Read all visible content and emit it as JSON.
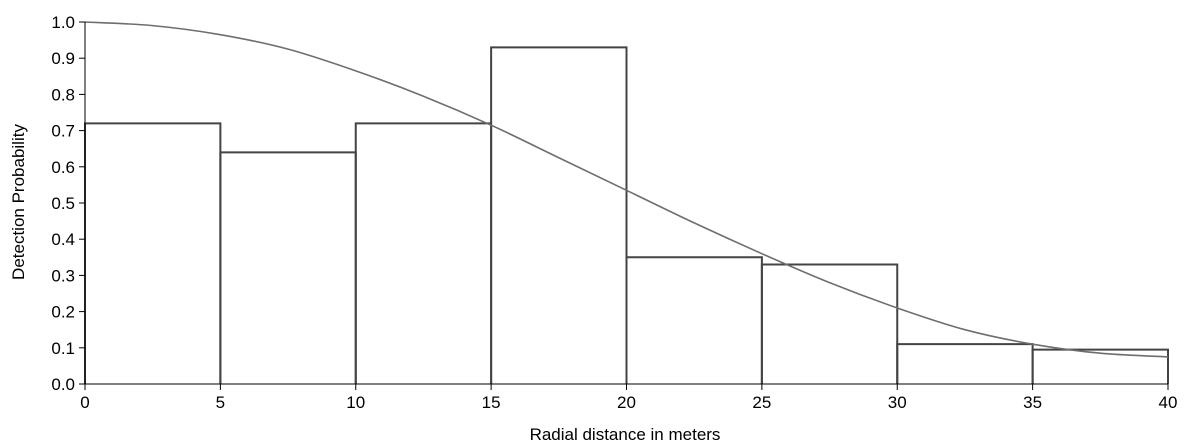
{
  "chart_data": {
    "type": "bar",
    "title": "",
    "xlabel": "Radial distance in meters",
    "ylabel": "Detection Probability",
    "xlim": [
      0,
      40
    ],
    "ylim": [
      0,
      1.0
    ],
    "xticks": [
      "0",
      "5",
      "10",
      "15",
      "20",
      "25",
      "30",
      "35",
      "40"
    ],
    "yticks": [
      "0.0",
      "0.1",
      "0.2",
      "0.3",
      "0.4",
      "0.5",
      "0.6",
      "0.7",
      "0.8",
      "0.9",
      "1.0"
    ],
    "grid": false,
    "bins": [
      {
        "from": 0,
        "to": 5,
        "value": 0.72
      },
      {
        "from": 5,
        "to": 10,
        "value": 0.64
      },
      {
        "from": 10,
        "to": 15,
        "value": 0.72
      },
      {
        "from": 15,
        "to": 20,
        "value": 0.93
      },
      {
        "from": 20,
        "to": 25,
        "value": 0.35
      },
      {
        "from": 25,
        "to": 30,
        "value": 0.33
      },
      {
        "from": 30,
        "to": 35,
        "value": 0.11
      },
      {
        "from": 35,
        "to": 40,
        "value": 0.095
      }
    ],
    "curve": {
      "type": "line",
      "x": [
        0,
        2.5,
        5,
        7.5,
        10,
        12.5,
        15,
        17.5,
        20,
        22.5,
        25,
        27.5,
        30,
        32.5,
        35,
        37.5,
        40
      ],
      "y": [
        1.0,
        0.99,
        0.965,
        0.925,
        0.865,
        0.795,
        0.715,
        0.625,
        0.535,
        0.445,
        0.36,
        0.28,
        0.21,
        0.15,
        0.11,
        0.085,
        0.075
      ]
    },
    "colors": {
      "bars": "#444444",
      "curve": "#6e6e6e",
      "axis": "#000000"
    }
  }
}
